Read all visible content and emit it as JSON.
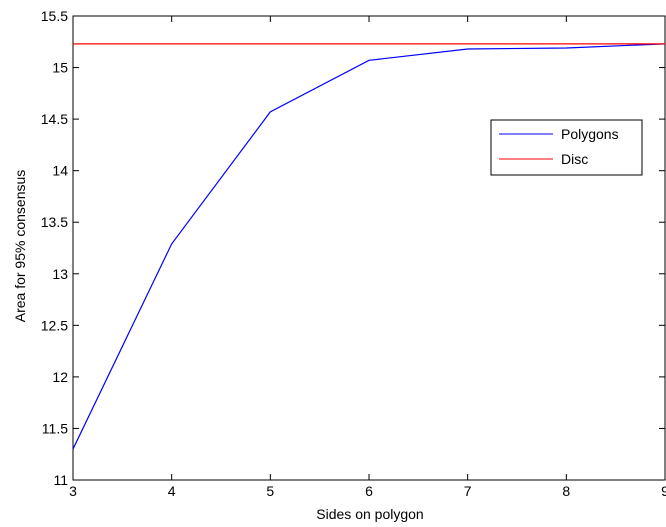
{
  "chart_data": {
    "type": "line",
    "title": "",
    "xlabel": "Sides on polygon",
    "ylabel": "Area for 95% consensus",
    "xlim": [
      3,
      9
    ],
    "ylim": [
      11,
      15.5
    ],
    "xticks": [
      "3",
      "4",
      "5",
      "6",
      "7",
      "8",
      "9"
    ],
    "yticks": [
      "11",
      "11.5",
      "12",
      "12.5",
      "13",
      "13.5",
      "14",
      "14.5",
      "15",
      "15.5"
    ],
    "grid": false,
    "legend_position": "right",
    "series": [
      {
        "name": "Polygons",
        "color": "#0000ff",
        "x": [
          3,
          4,
          5,
          6,
          7,
          8,
          9
        ],
        "y": [
          11.3,
          13.29,
          14.57,
          15.07,
          15.18,
          15.19,
          15.23
        ]
      },
      {
        "name": "Disc",
        "color": "#ff0000",
        "x": [
          3,
          9
        ],
        "y": [
          15.23,
          15.23
        ]
      }
    ]
  }
}
